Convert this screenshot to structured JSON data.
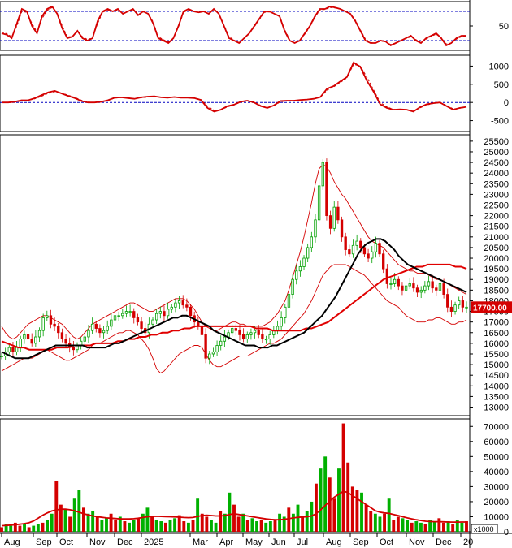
{
  "colors": {
    "background": "#ffffff",
    "frame": "#000000",
    "indicator": "#d40000",
    "signal_dashed": "#d40000",
    "reference_line": "#0000c0",
    "up_candle": "#00a000",
    "down_candle": "#d40000",
    "bollinger": "#d40000",
    "ma_black": "#000000",
    "ma_red": "#e00000",
    "volume_up": "#00b000",
    "volume_down": "#d40000",
    "volume_ma": "#d40000",
    "price_badge": "#d40000"
  },
  "chart_data": [
    {
      "type": "line",
      "panel": "oscillator",
      "y_ticks": [
        50
      ],
      "reference_levels": [
        80,
        20
      ],
      "ylim": [
        0,
        100
      ],
      "series": [
        {
          "values": [
            35,
            32,
            25,
            55,
            85,
            80,
            50,
            35,
            70,
            85,
            90,
            75,
            45,
            25,
            28,
            40,
            25,
            20,
            25,
            60,
            80,
            85,
            80,
            85,
            75,
            80,
            85,
            72,
            80,
            75,
            55,
            25,
            20,
            15,
            25,
            50,
            80,
            85,
            80,
            78,
            80,
            75,
            85,
            75,
            50,
            25,
            20,
            15,
            25,
            35,
            50,
            65,
            80,
            80,
            75,
            70,
            40,
            20,
            15,
            20,
            35,
            50,
            70,
            85,
            85,
            90,
            88,
            85,
            80,
            75,
            60,
            40,
            20,
            15,
            15,
            20,
            18,
            10,
            15,
            20,
            25,
            30,
            20,
            15,
            25,
            30,
            35,
            25,
            10,
            15,
            25,
            30,
            30
          ]
        },
        {
          "dashed": true,
          "values": [
            38,
            34,
            28,
            50,
            80,
            78,
            55,
            38,
            65,
            82,
            88,
            76,
            50,
            28,
            28,
            38,
            28,
            22,
            26,
            55,
            78,
            83,
            80,
            83,
            76,
            80,
            83,
            74,
            79,
            76,
            58,
            28,
            22,
            17,
            25,
            48,
            78,
            83,
            80,
            78,
            79,
            76,
            83,
            76,
            52,
            28,
            21,
            16,
            24,
            34,
            48,
            63,
            78,
            79,
            75,
            71,
            43,
            22,
            16,
            19,
            33,
            48,
            68,
            83,
            84,
            88,
            87,
            85,
            80,
            76,
            62,
            42,
            23,
            16,
            15,
            19,
            18,
            12,
            15,
            19,
            24,
            28,
            22,
            16,
            23,
            29,
            33,
            26,
            13,
            15,
            23,
            28,
            29
          ]
        }
      ]
    },
    {
      "type": "line",
      "panel": "momentum",
      "y_ticks": [
        1000,
        500,
        0,
        -500
      ],
      "ylim": [
        -800,
        1300
      ],
      "series": [
        {
          "values": [
            0,
            0,
            20,
            60,
            60,
            120,
            200,
            280,
            320,
            250,
            180,
            120,
            40,
            0,
            0,
            20,
            60,
            130,
            140,
            120,
            100,
            140,
            160,
            170,
            140,
            130,
            150,
            130,
            130,
            120,
            70,
            -150,
            -250,
            -200,
            -100,
            -60,
            20,
            50,
            0,
            -100,
            -150,
            -80,
            40,
            50,
            50,
            70,
            80,
            100,
            150,
            380,
            450,
            580,
            700,
            1100,
            980,
            600,
            300,
            -50,
            -150,
            -200,
            -190,
            -200,
            -250,
            -130,
            -50,
            -20,
            0,
            -100,
            -200,
            -150,
            -120
          ]
        },
        {
          "dashed": true,
          "values": [
            0,
            0,
            10,
            40,
            55,
            100,
            170,
            250,
            300,
            260,
            200,
            140,
            60,
            10,
            0,
            10,
            50,
            120,
            135,
            125,
            105,
            130,
            150,
            165,
            145,
            135,
            145,
            132,
            128,
            120,
            80,
            -100,
            -220,
            -210,
            -120,
            -70,
            10,
            45,
            10,
            -80,
            -140,
            -90,
            20,
            45,
            50,
            65,
            75,
            95,
            140,
            340,
            430,
            550,
            680,
            1050,
            1000,
            700,
            350,
            0,
            -120,
            -190,
            -190,
            -200,
            -240,
            -150,
            -70,
            -30,
            -5,
            -80,
            -180,
            -160,
            -130
          ]
        }
      ]
    },
    {
      "type": "candlestick",
      "panel": "price",
      "y_ticks": [
        13000,
        13500,
        14000,
        14500,
        15000,
        15500,
        16000,
        16500,
        17000,
        17500,
        18000,
        18500,
        19000,
        19500,
        20000,
        20500,
        21000,
        21500,
        22000,
        22500,
        23000,
        23500,
        24000,
        24500,
        25000,
        25500
      ],
      "ylim": [
        12600,
        25800
      ],
      "last_price_label": "17700.00",
      "closes": [
        15400,
        15600,
        15800,
        15600,
        15800,
        16200,
        16400,
        16200,
        16000,
        16300,
        16600,
        17200,
        17300,
        16900,
        16800,
        16500,
        16200,
        16000,
        15800,
        15700,
        15900,
        16100,
        16300,
        16600,
        16900,
        16700,
        16500,
        16600,
        16800,
        17100,
        17300,
        17300,
        17400,
        17500,
        17500,
        17200,
        17000,
        16700,
        16500,
        16900,
        17100,
        17400,
        17500,
        17300,
        17600,
        17700,
        17900,
        18000,
        17800,
        17700,
        17300,
        17000,
        16800,
        16400,
        15300,
        15500,
        15600,
        15900,
        16100,
        16300,
        16500,
        16700,
        16600,
        16400,
        16200,
        16400,
        16500,
        16600,
        16400,
        16200,
        16200,
        16400,
        16600,
        16800,
        17200,
        17700,
        18300,
        19000,
        19400,
        19600,
        20000,
        20500,
        21000,
        21800,
        23400,
        24500,
        22000,
        21400,
        22400,
        21800,
        21000,
        20400,
        20200,
        20600,
        20800,
        20500,
        20200,
        20000,
        20300,
        20700,
        20200,
        19500,
        18800,
        18800,
        19000,
        18700,
        18500,
        18700,
        18800,
        18600,
        18400,
        18500,
        18700,
        18900,
        18600,
        18500,
        18800,
        18300,
        17700,
        17500,
        17800,
        18000,
        17700,
        17700
      ],
      "upper_band": [
        16800,
        16500,
        16300,
        16200,
        16300,
        16500,
        16700,
        16900,
        17000,
        17100,
        17200,
        17300,
        17300,
        17200,
        17100,
        17000,
        16900,
        16700,
        16500,
        16300,
        16200,
        16300,
        16500,
        16700,
        16900,
        17000,
        17100,
        17200,
        17300,
        17400,
        17500,
        17600,
        17700,
        17800,
        17900,
        17900,
        17800,
        17700,
        17600,
        17500,
        17500,
        17600,
        17700,
        17800,
        17900,
        18000,
        18100,
        18100,
        18100,
        18000,
        17800,
        17600,
        17300,
        17000,
        16800,
        16700,
        16600,
        16600,
        16700,
        16800,
        16900,
        17000,
        17000,
        16900,
        16900,
        16800,
        16800,
        16800,
        16800,
        16800,
        16900,
        17000,
        17200,
        17400,
        17700,
        18000,
        18500,
        19100,
        19700,
        20300,
        21000,
        21800,
        22600,
        23500,
        24200,
        24400,
        24300,
        24000,
        23600,
        23300,
        23000,
        22800,
        22500,
        22200,
        21900,
        21600,
        21300,
        21000,
        20800,
        20700,
        20600,
        20500,
        20300,
        20100,
        19900,
        19700,
        19600,
        19500,
        19400,
        19400,
        19300,
        19300,
        19300,
        19200,
        19100,
        19000,
        19000,
        18900,
        18800,
        18700,
        18600,
        18500,
        18400,
        18300
      ],
      "lower_band": [
        14700,
        14800,
        14900,
        15000,
        15100,
        15200,
        15300,
        15300,
        15300,
        15400,
        15500,
        15600,
        15700,
        15600,
        15500,
        15400,
        15300,
        15200,
        15200,
        15300,
        15400,
        15500,
        15600,
        15700,
        15900,
        16000,
        16000,
        16100,
        16200,
        16300,
        16400,
        16500,
        16500,
        16600,
        16600,
        16500,
        16400,
        16200,
        16000,
        15700,
        15300,
        14800,
        14600,
        14700,
        14900,
        15100,
        15300,
        15500,
        15600,
        15700,
        15800,
        15900,
        15900,
        15800,
        15500,
        15200,
        15000,
        14900,
        14900,
        15000,
        15100,
        15200,
        15300,
        15400,
        15400,
        15400,
        15500,
        15600,
        15700,
        15800,
        15900,
        16000,
        16000,
        16100,
        16200,
        16400,
        16600,
        16800,
        17000,
        17200,
        17400,
        17700,
        18000,
        18400,
        18800,
        19200,
        19400,
        19600,
        19700,
        19700,
        19700,
        19700,
        19600,
        19500,
        19400,
        19300,
        19200,
        19000,
        18800,
        18600,
        18400,
        18200,
        18000,
        17900,
        17800,
        17700,
        17500,
        17300,
        17200,
        17100,
        17000,
        17000,
        17000,
        17100,
        17100,
        17200,
        17200,
        17100,
        17000,
        16900,
        16900,
        17000,
        17000,
        17100
      ],
      "ma_black": [
        15600,
        15500,
        15400,
        15300,
        15300,
        15300,
        15300,
        15400,
        15500,
        15600,
        15700,
        15800,
        15900,
        15900,
        15900,
        15900,
        15900,
        15900,
        15900,
        15800,
        15800,
        15800,
        15800,
        15800,
        15900,
        16000,
        16000,
        16100,
        16200,
        16300,
        16400,
        16500,
        16600,
        16700,
        16800,
        16900,
        17000,
        17100,
        17200,
        17200,
        17300,
        17300,
        17200,
        17100,
        17000,
        16900,
        16800,
        16600,
        16500,
        16400,
        16300,
        16200,
        16100,
        16000,
        15900,
        15900,
        15900,
        15800,
        15800,
        15800,
        15900,
        15900,
        16000,
        16100,
        16200,
        16300,
        16400,
        16500,
        16700,
        16900,
        17100,
        17300,
        17600,
        17900,
        18200,
        18600,
        19000,
        19400,
        19800,
        20200,
        20500,
        20700,
        20800,
        20900,
        20900,
        20800,
        20600,
        20400,
        20100,
        19900,
        19700,
        19600,
        19500,
        19400,
        19300,
        19200,
        19100,
        19000,
        18900,
        18800,
        18700,
        18600,
        18500,
        18400
      ],
      "ma_red": [
        16100,
        16000,
        15900,
        15800,
        15800,
        15700,
        15700,
        15700,
        15700,
        15700,
        15800,
        15800,
        15800,
        15900,
        15900,
        15900,
        15900,
        16000,
        16000,
        16000,
        16000,
        16100,
        16100,
        16200,
        16200,
        16300,
        16300,
        16400,
        16400,
        16500,
        16500,
        16600,
        16600,
        16700,
        16700,
        16800,
        16800,
        16800,
        16800,
        16800,
        16800,
        16800,
        16800,
        16800,
        16800,
        16800,
        16700,
        16700,
        16700,
        16600,
        16600,
        16600,
        16600,
        16600,
        16600,
        16700,
        16700,
        16800,
        16900,
        17000,
        17200,
        17400,
        17600,
        17800,
        18000,
        18200,
        18400,
        18600,
        18800,
        19000,
        19100,
        19200,
        19300,
        19400,
        19500,
        19600,
        19600,
        19700,
        19700,
        19700,
        19700,
        19700,
        19600,
        19600,
        19500
      ]
    },
    {
      "type": "bar",
      "panel": "volume",
      "y_ticks": [
        0,
        10000,
        20000,
        30000,
        40000,
        50000,
        60000,
        70000
      ],
      "ylim": [
        0,
        75000
      ],
      "unit_label": "x1000",
      "values": [
        3000,
        5000,
        4000,
        6000,
        4000,
        5000,
        3000,
        4000,
        5000,
        6000,
        8000,
        12000,
        34000,
        18000,
        15000,
        10000,
        22000,
        28000,
        16000,
        12000,
        14000,
        10000,
        8000,
        9000,
        12000,
        8000,
        10000,
        7000,
        6000,
        8000,
        9000,
        12000,
        16000,
        10000,
        8000,
        7000,
        6000,
        8000,
        9000,
        11000,
        7000,
        6000,
        8000,
        22000,
        12000,
        10000,
        8000,
        6000,
        14000,
        12000,
        26000,
        18000,
        10000,
        12000,
        8000,
        9000,
        7000,
        8000,
        6000,
        7000,
        8000,
        12000,
        10000,
        16000,
        12000,
        18000,
        10000,
        14000,
        20000,
        32000,
        42000,
        50000,
        36000,
        22000,
        42000,
        72000,
        46000,
        30000,
        28000,
        26000,
        18000,
        14000,
        12000,
        10000,
        12000,
        22000,
        8000,
        10000,
        9000,
        8000,
        6000,
        7000,
        6000,
        5000,
        8000,
        7000,
        9000,
        6000,
        7000,
        5000,
        8000,
        6000,
        7000
      ],
      "ma": [
        4000,
        4200,
        4400,
        4700,
        5000,
        5400,
        6000,
        7200,
        9000,
        11000,
        12500,
        13800,
        14500,
        15000,
        15000,
        14600,
        14000,
        13000,
        12000,
        11200,
        10500,
        10000,
        9600,
        9200,
        9000,
        8800,
        8600,
        8500,
        8500,
        8700,
        9000,
        9500,
        10000,
        10200,
        10300,
        10200,
        10100,
        10000,
        9900,
        9700,
        9500,
        9400,
        9500,
        10200,
        10800,
        11000,
        10800,
        10500,
        10500,
        10800,
        11500,
        12000,
        11500,
        11000,
        10500,
        10000,
        9500,
        9000,
        8500,
        8200,
        8000,
        8000,
        8300,
        8700,
        9200,
        9600,
        9800,
        10000,
        10500,
        12000,
        14500,
        17500,
        20500,
        23000,
        25000,
        27000,
        26000,
        24000,
        22000,
        20000,
        18000,
        16000,
        14000,
        13000,
        12500,
        12200,
        11500,
        10800,
        10000,
        9200,
        8600,
        8000,
        7500,
        7000,
        6800,
        6700,
        6700,
        6600,
        6500,
        6400,
        6400,
        6500,
        6500
      ]
    }
  ],
  "x_axis": {
    "labels": [
      "Aug",
      "Sep",
      "Oct",
      "Nov",
      "Dec",
      "2025",
      "Mar",
      "Apr",
      "May",
      "Jun",
      "Jul",
      "Aug",
      "Sep",
      "Oct",
      "Nov",
      "Dec",
      "20"
    ]
  }
}
